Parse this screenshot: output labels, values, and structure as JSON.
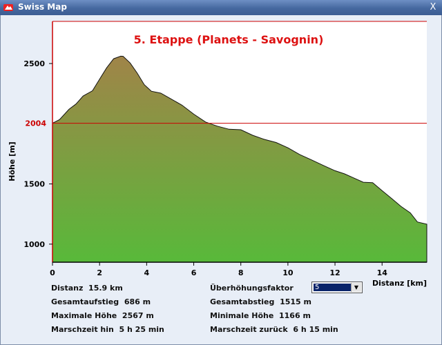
{
  "window": {
    "title": "Swiss Map",
    "close_label": "X"
  },
  "chart_data": {
    "type": "area",
    "title": "5. Etappe (Planets - Savognin)",
    "xlabel": "Distanz [km]",
    "ylabel": "Höhe [m]",
    "xlim": [
      0,
      15.9
    ],
    "ylim": [
      850,
      2850
    ],
    "x_ticks": [
      0,
      2,
      4,
      6,
      8,
      10,
      12,
      14
    ],
    "y_ticks": [
      1000,
      1500,
      2500
    ],
    "reference_line": {
      "value": 2004,
      "label": "2004"
    },
    "colors": {
      "top": "#a08448",
      "bottom": "#58b93a",
      "title": "#dd1111",
      "reference": "#cc0000"
    },
    "x": [
      0,
      0.3,
      0.7,
      1.0,
      1.3,
      1.7,
      2.0,
      2.3,
      2.6,
      2.9,
      3.0,
      3.3,
      3.6,
      3.9,
      4.2,
      4.6,
      5.0,
      5.5,
      6.0,
      6.5,
      7.0,
      7.5,
      8.0,
      8.5,
      9.0,
      9.5,
      10.0,
      10.5,
      11.0,
      11.5,
      12.0,
      12.4,
      12.8,
      13.2,
      13.6,
      14.0,
      14.4,
      14.8,
      15.2,
      15.5,
      15.9
    ],
    "y": [
      2004,
      2040,
      2120,
      2170,
      2230,
      2280,
      2370,
      2470,
      2540,
      2567,
      2560,
      2510,
      2420,
      2330,
      2270,
      2260,
      2210,
      2160,
      2080,
      2020,
      1980,
      1960,
      1950,
      1910,
      1870,
      1850,
      1800,
      1750,
      1700,
      1660,
      1610,
      1590,
      1550,
      1520,
      1510,
      1450,
      1380,
      1320,
      1260,
      1190,
      1166
    ]
  },
  "stats": {
    "distanz": {
      "label": "Distanz",
      "value": "15.9 km"
    },
    "aufstieg": {
      "label": "Gesamtaufstieg",
      "value": "686 m"
    },
    "max": {
      "label": "Maximale Höhe",
      "value": "2567 m"
    },
    "hin": {
      "label": "Marschzeit hin",
      "value": "5 h 25 min"
    },
    "factor_label": "Überhöhungsfaktor",
    "factor_value": "5",
    "abstieg": {
      "label": "Gesamtabstieg",
      "value": "1515 m"
    },
    "min": {
      "label": "Minimale Höhe",
      "value": "1166 m"
    },
    "zurueck": {
      "label": "Marschzeit zurück",
      "value": "6 h 15 min"
    }
  }
}
